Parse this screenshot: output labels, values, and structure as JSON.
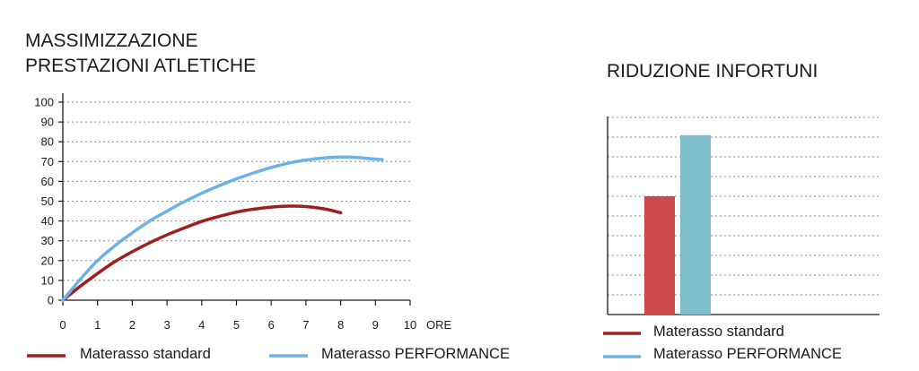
{
  "chart_data": [
    {
      "type": "line",
      "title_lines": [
        "MASSIMIZZAZIONE",
        "PRESTAZIONI ATLETICHE"
      ],
      "xlabel": "ORE",
      "ylabel": "",
      "xlim": [
        0,
        10
      ],
      "ylim": [
        0,
        100
      ],
      "x_ticks": [
        0,
        1,
        2,
        3,
        4,
        5,
        6,
        7,
        8,
        9,
        10
      ],
      "y_ticks": [
        0,
        10,
        20,
        30,
        40,
        50,
        60,
        70,
        80,
        90,
        100
      ],
      "grid": true,
      "legend_position": "bottom",
      "series": [
        {
          "name": "Materasso standard",
          "color": "#9e1f1f",
          "x": [
            0,
            0.5,
            1,
            1.5,
            2,
            2.5,
            3,
            3.5,
            4,
            4.5,
            5,
            5.5,
            6,
            6.5,
            7,
            7.5,
            8
          ],
          "y": [
            0,
            7,
            13.5,
            19.5,
            24.5,
            29,
            33,
            36.5,
            39.8,
            42.3,
            44.5,
            46,
            47,
            47.5,
            47.3,
            46.2,
            44.2
          ]
        },
        {
          "name": "Materasso PERFORMANCE",
          "color": "#6cb2e4",
          "x": [
            0,
            0.5,
            1,
            1.5,
            2,
            2.5,
            3,
            3.5,
            4,
            4.5,
            5,
            5.5,
            6,
            6.5,
            7,
            7.5,
            8,
            8.5,
            9,
            9.2
          ],
          "y": [
            0,
            10.5,
            20,
            27.5,
            34,
            40,
            45,
            49.8,
            54,
            57.8,
            61.3,
            64.3,
            67,
            69.2,
            70.8,
            71.8,
            72.3,
            72,
            71.2,
            71
          ]
        }
      ]
    },
    {
      "type": "bar",
      "title": "RIDUZIONE INFORTUNI",
      "ylim": [
        0,
        100
      ],
      "grid": true,
      "legend_position": "bottom",
      "series": [
        {
          "name": "Materasso standard",
          "value": 60,
          "color": "#cd4a4a",
          "legend_color": "#9e1f1f"
        },
        {
          "name": "Materasso PERFORMANCE",
          "value": 91,
          "color": "#7fbfcc",
          "legend_color": "#6cb2e4"
        }
      ]
    }
  ]
}
